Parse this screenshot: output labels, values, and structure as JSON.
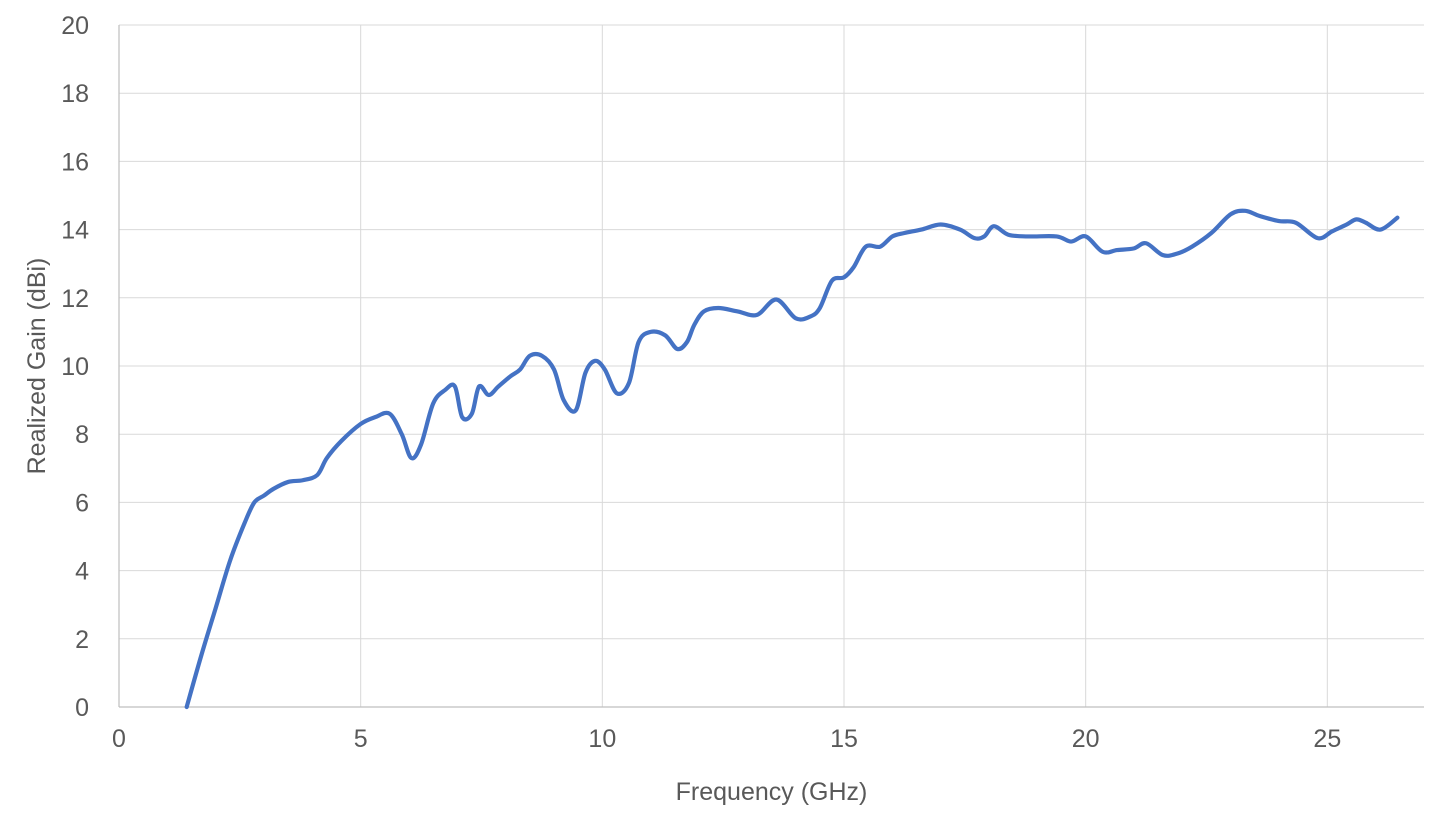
{
  "chart_data": {
    "type": "line",
    "title": "",
    "xlabel": "Frequency (GHz)",
    "ylabel": "Realized Gain (dBi)",
    "xlim": [
      0,
      27
    ],
    "ylim": [
      0,
      20
    ],
    "xticks": [
      0,
      5,
      10,
      15,
      20,
      25
    ],
    "yticks": [
      0,
      2,
      4,
      6,
      8,
      10,
      12,
      14,
      16,
      18,
      20
    ],
    "grid": true,
    "legend": "none",
    "series": [
      {
        "color": "#4472c4",
        "x": [
          1.4,
          1.7,
          2.0,
          2.3,
          2.6,
          2.8,
          3.0,
          3.2,
          3.5,
          3.8,
          4.1,
          4.3,
          4.6,
          5.0,
          5.3,
          5.6,
          5.85,
          6.05,
          6.25,
          6.5,
          6.75,
          6.95,
          7.1,
          7.3,
          7.45,
          7.65,
          7.85,
          8.1,
          8.3,
          8.5,
          8.75,
          9.0,
          9.2,
          9.45,
          9.65,
          9.85,
          10.05,
          10.3,
          10.55,
          10.75,
          11.0,
          11.3,
          11.55,
          11.75,
          11.9,
          12.1,
          12.4,
          12.8,
          13.2,
          13.6,
          14.0,
          14.3,
          14.5,
          14.75,
          15.0,
          15.2,
          15.45,
          15.75,
          16.0,
          16.25,
          16.6,
          17.0,
          17.4,
          17.7,
          17.9,
          18.1,
          18.4,
          18.8,
          19.4,
          19.7,
          20.0,
          20.35,
          20.65,
          21.0,
          21.25,
          21.6,
          21.9,
          22.2,
          22.6,
          23.0,
          23.3,
          23.6,
          24.0,
          24.35,
          24.8,
          25.1,
          25.4,
          25.6,
          25.8,
          26.1,
          26.45
        ],
        "y": [
          0.0,
          1.5,
          2.9,
          4.3,
          5.4,
          6.0,
          6.2,
          6.4,
          6.6,
          6.65,
          6.8,
          7.3,
          7.8,
          8.3,
          8.5,
          8.6,
          8.0,
          7.3,
          7.7,
          8.9,
          9.3,
          9.4,
          8.5,
          8.6,
          9.4,
          9.15,
          9.4,
          9.7,
          9.9,
          10.3,
          10.3,
          9.9,
          9.0,
          8.7,
          9.8,
          10.15,
          9.9,
          9.2,
          9.5,
          10.7,
          11.0,
          10.9,
          10.5,
          10.7,
          11.2,
          11.6,
          11.7,
          11.6,
          11.5,
          11.95,
          11.4,
          11.45,
          11.7,
          12.5,
          12.6,
          12.9,
          13.5,
          13.5,
          13.8,
          13.9,
          14.0,
          14.15,
          14.0,
          13.75,
          13.8,
          14.1,
          13.85,
          13.8,
          13.8,
          13.65,
          13.8,
          13.35,
          13.4,
          13.45,
          13.6,
          13.25,
          13.3,
          13.5,
          13.9,
          14.45,
          14.55,
          14.4,
          14.25,
          14.2,
          13.75,
          13.95,
          14.15,
          14.3,
          14.2,
          14.0,
          14.35
        ]
      }
    ]
  }
}
